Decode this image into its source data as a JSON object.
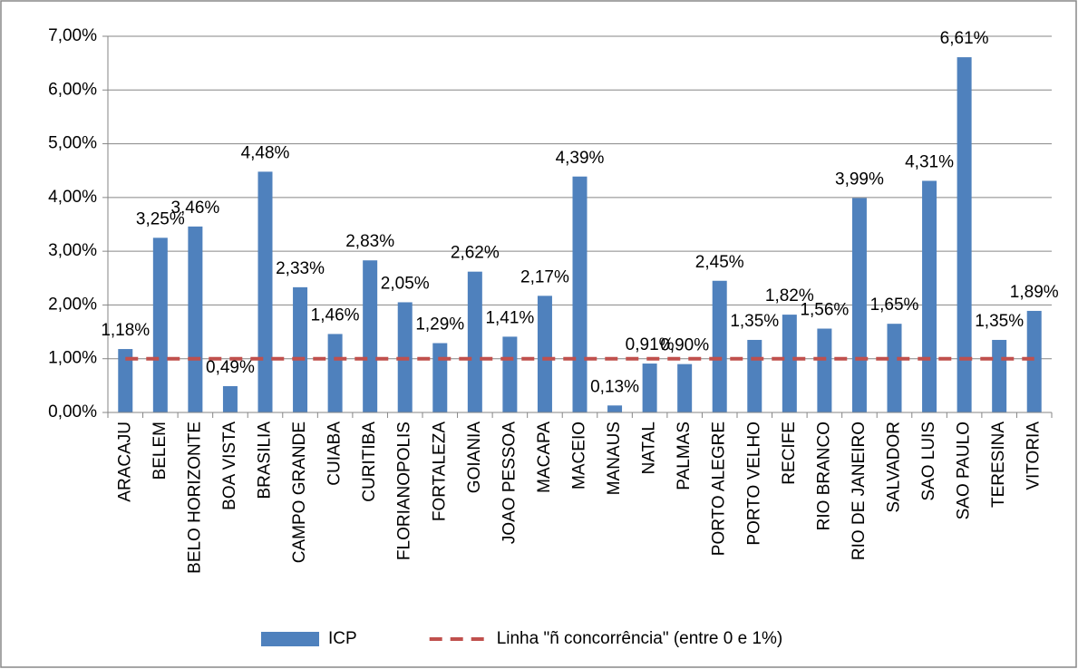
{
  "chart_data": {
    "type": "bar",
    "categories": [
      "ARACAJU",
      "BELEM",
      "BELO HORIZONTE",
      "BOA VISTA",
      "BRASILIA",
      "CAMPO GRANDE",
      "CUIABA",
      "CURITIBA",
      "FLORIANOPOLIS",
      "FORTALEZA",
      "GOIANIA",
      "JOAO PESSOA",
      "MACAPA",
      "MACEIO",
      "MANAUS",
      "NATAL",
      "PALMAS",
      "PORTO ALEGRE",
      "PORTO VELHO",
      "RECIFE",
      "RIO BRANCO",
      "RIO DE JANEIRO",
      "SALVADOR",
      "SAO LUIS",
      "SAO PAULO",
      "TERESINA",
      "VITORIA"
    ],
    "series": [
      {
        "name": "ICP",
        "type": "bar",
        "color": "#4f81bd",
        "values": [
          1.18,
          3.25,
          3.46,
          0.49,
          4.48,
          2.33,
          1.46,
          2.83,
          2.05,
          1.29,
          2.62,
          1.41,
          2.17,
          4.39,
          0.13,
          0.91,
          0.9,
          2.45,
          1.35,
          1.82,
          1.56,
          3.99,
          1.65,
          4.31,
          6.61,
          1.35,
          1.89
        ],
        "value_labels": [
          "1,18%",
          "3,25%",
          "3,46%",
          "0,49%",
          "4,48%",
          "2,33%",
          "1,46%",
          "2,83%",
          "2,05%",
          "1,29%",
          "2,62%",
          "1,41%",
          "2,17%",
          "4,39%",
          "0,13%",
          "0,91%",
          "0,90%",
          "2,45%",
          "1,35%",
          "1,82%",
          "1,56%",
          "3,99%",
          "1,65%",
          "4,31%",
          "6,61%",
          "1,35%",
          "1,89%"
        ]
      },
      {
        "name": "Linha \"ñ concorrência\" (entre 0 e 1%)",
        "type": "line",
        "color": "#c0504d",
        "dashed": true,
        "values": [
          1,
          1,
          1,
          1,
          1,
          1,
          1,
          1,
          1,
          1,
          1,
          1,
          1,
          1,
          1,
          1,
          1,
          1,
          1,
          1,
          1,
          1,
          1,
          1,
          1,
          1,
          1
        ]
      }
    ],
    "ylim": [
      0,
      7
    ],
    "yticks": [
      {
        "value": 0,
        "label": "0,00%"
      },
      {
        "value": 1,
        "label": "1,00%"
      },
      {
        "value": 2,
        "label": "2,00%"
      },
      {
        "value": 3,
        "label": "3,00%"
      },
      {
        "value": 4,
        "label": "4,00%"
      },
      {
        "value": 5,
        "label": "5,00%"
      },
      {
        "value": 6,
        "label": "6,00%"
      },
      {
        "value": 7,
        "label": "7,00%"
      }
    ],
    "grid": true,
    "legend": "bottom"
  }
}
